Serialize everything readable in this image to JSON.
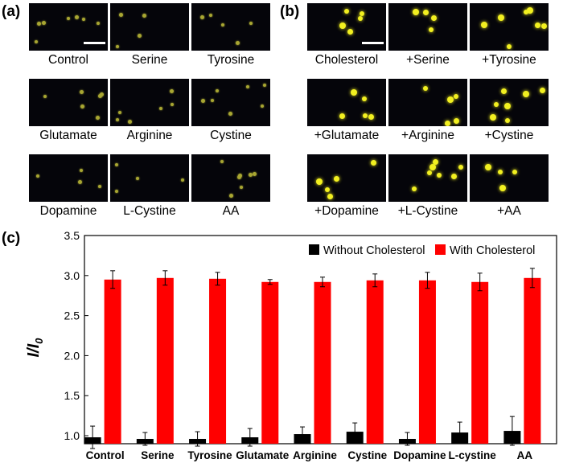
{
  "panels": {
    "a": {
      "label": "(a)",
      "captions": [
        "Control",
        "Serine",
        "Tyrosine",
        "Glutamate",
        "Arginine",
        "Cystine",
        "Dopamine",
        "L-Cystine",
        "AA"
      ]
    },
    "b": {
      "label": "(b)",
      "captions": [
        "Cholesterol",
        "+Serine",
        "+Tyrosine",
        "+Glutamate",
        "+Arginine",
        "+Cystine",
        "+Dopamine",
        "+L-Cystine",
        "+AA"
      ]
    },
    "c": {
      "label": "(c)"
    }
  },
  "colors": {
    "without": "#000000",
    "with": "#ff0000",
    "dim_dot": "#a8a632",
    "bright_dot": "#f2f020",
    "image_bg": "#05050a"
  },
  "chart_data": {
    "type": "bar",
    "title": "",
    "xlabel": "",
    "ylabel": "I/I0",
    "ylabel_main": "I/I",
    "ylabel_sub": "0",
    "ylim": [
      0.9,
      3.5
    ],
    "yticks": [
      1.0,
      1.5,
      2.0,
      2.5,
      3.0,
      3.5
    ],
    "ytick_labels": [
      "1.0",
      "1.5",
      "2.0",
      "2.5",
      "3.0",
      "3.5"
    ],
    "categories": [
      "Control",
      "Serine",
      "Tyrosine",
      "Glutamate",
      "Arginine",
      "Cystine",
      "Dopamine",
      "L-cystine",
      "AA"
    ],
    "series": [
      {
        "name": "Without Cholesterol",
        "color": "#000000",
        "values": [
          0.98,
          0.96,
          0.96,
          0.98,
          1.02,
          1.05,
          0.96,
          1.04,
          1.06
        ],
        "errors": [
          0.14,
          0.08,
          0.09,
          0.11,
          0.09,
          0.11,
          0.08,
          0.13,
          0.18
        ]
      },
      {
        "name": "With Cholesterol",
        "color": "#ff0000",
        "values": [
          2.95,
          2.97,
          2.96,
          2.92,
          2.92,
          2.94,
          2.94,
          2.92,
          2.97
        ],
        "errors": [
          0.11,
          0.09,
          0.08,
          0.03,
          0.06,
          0.08,
          0.1,
          0.11,
          0.12
        ]
      }
    ],
    "legend_position": "top-right",
    "grid": false
  }
}
